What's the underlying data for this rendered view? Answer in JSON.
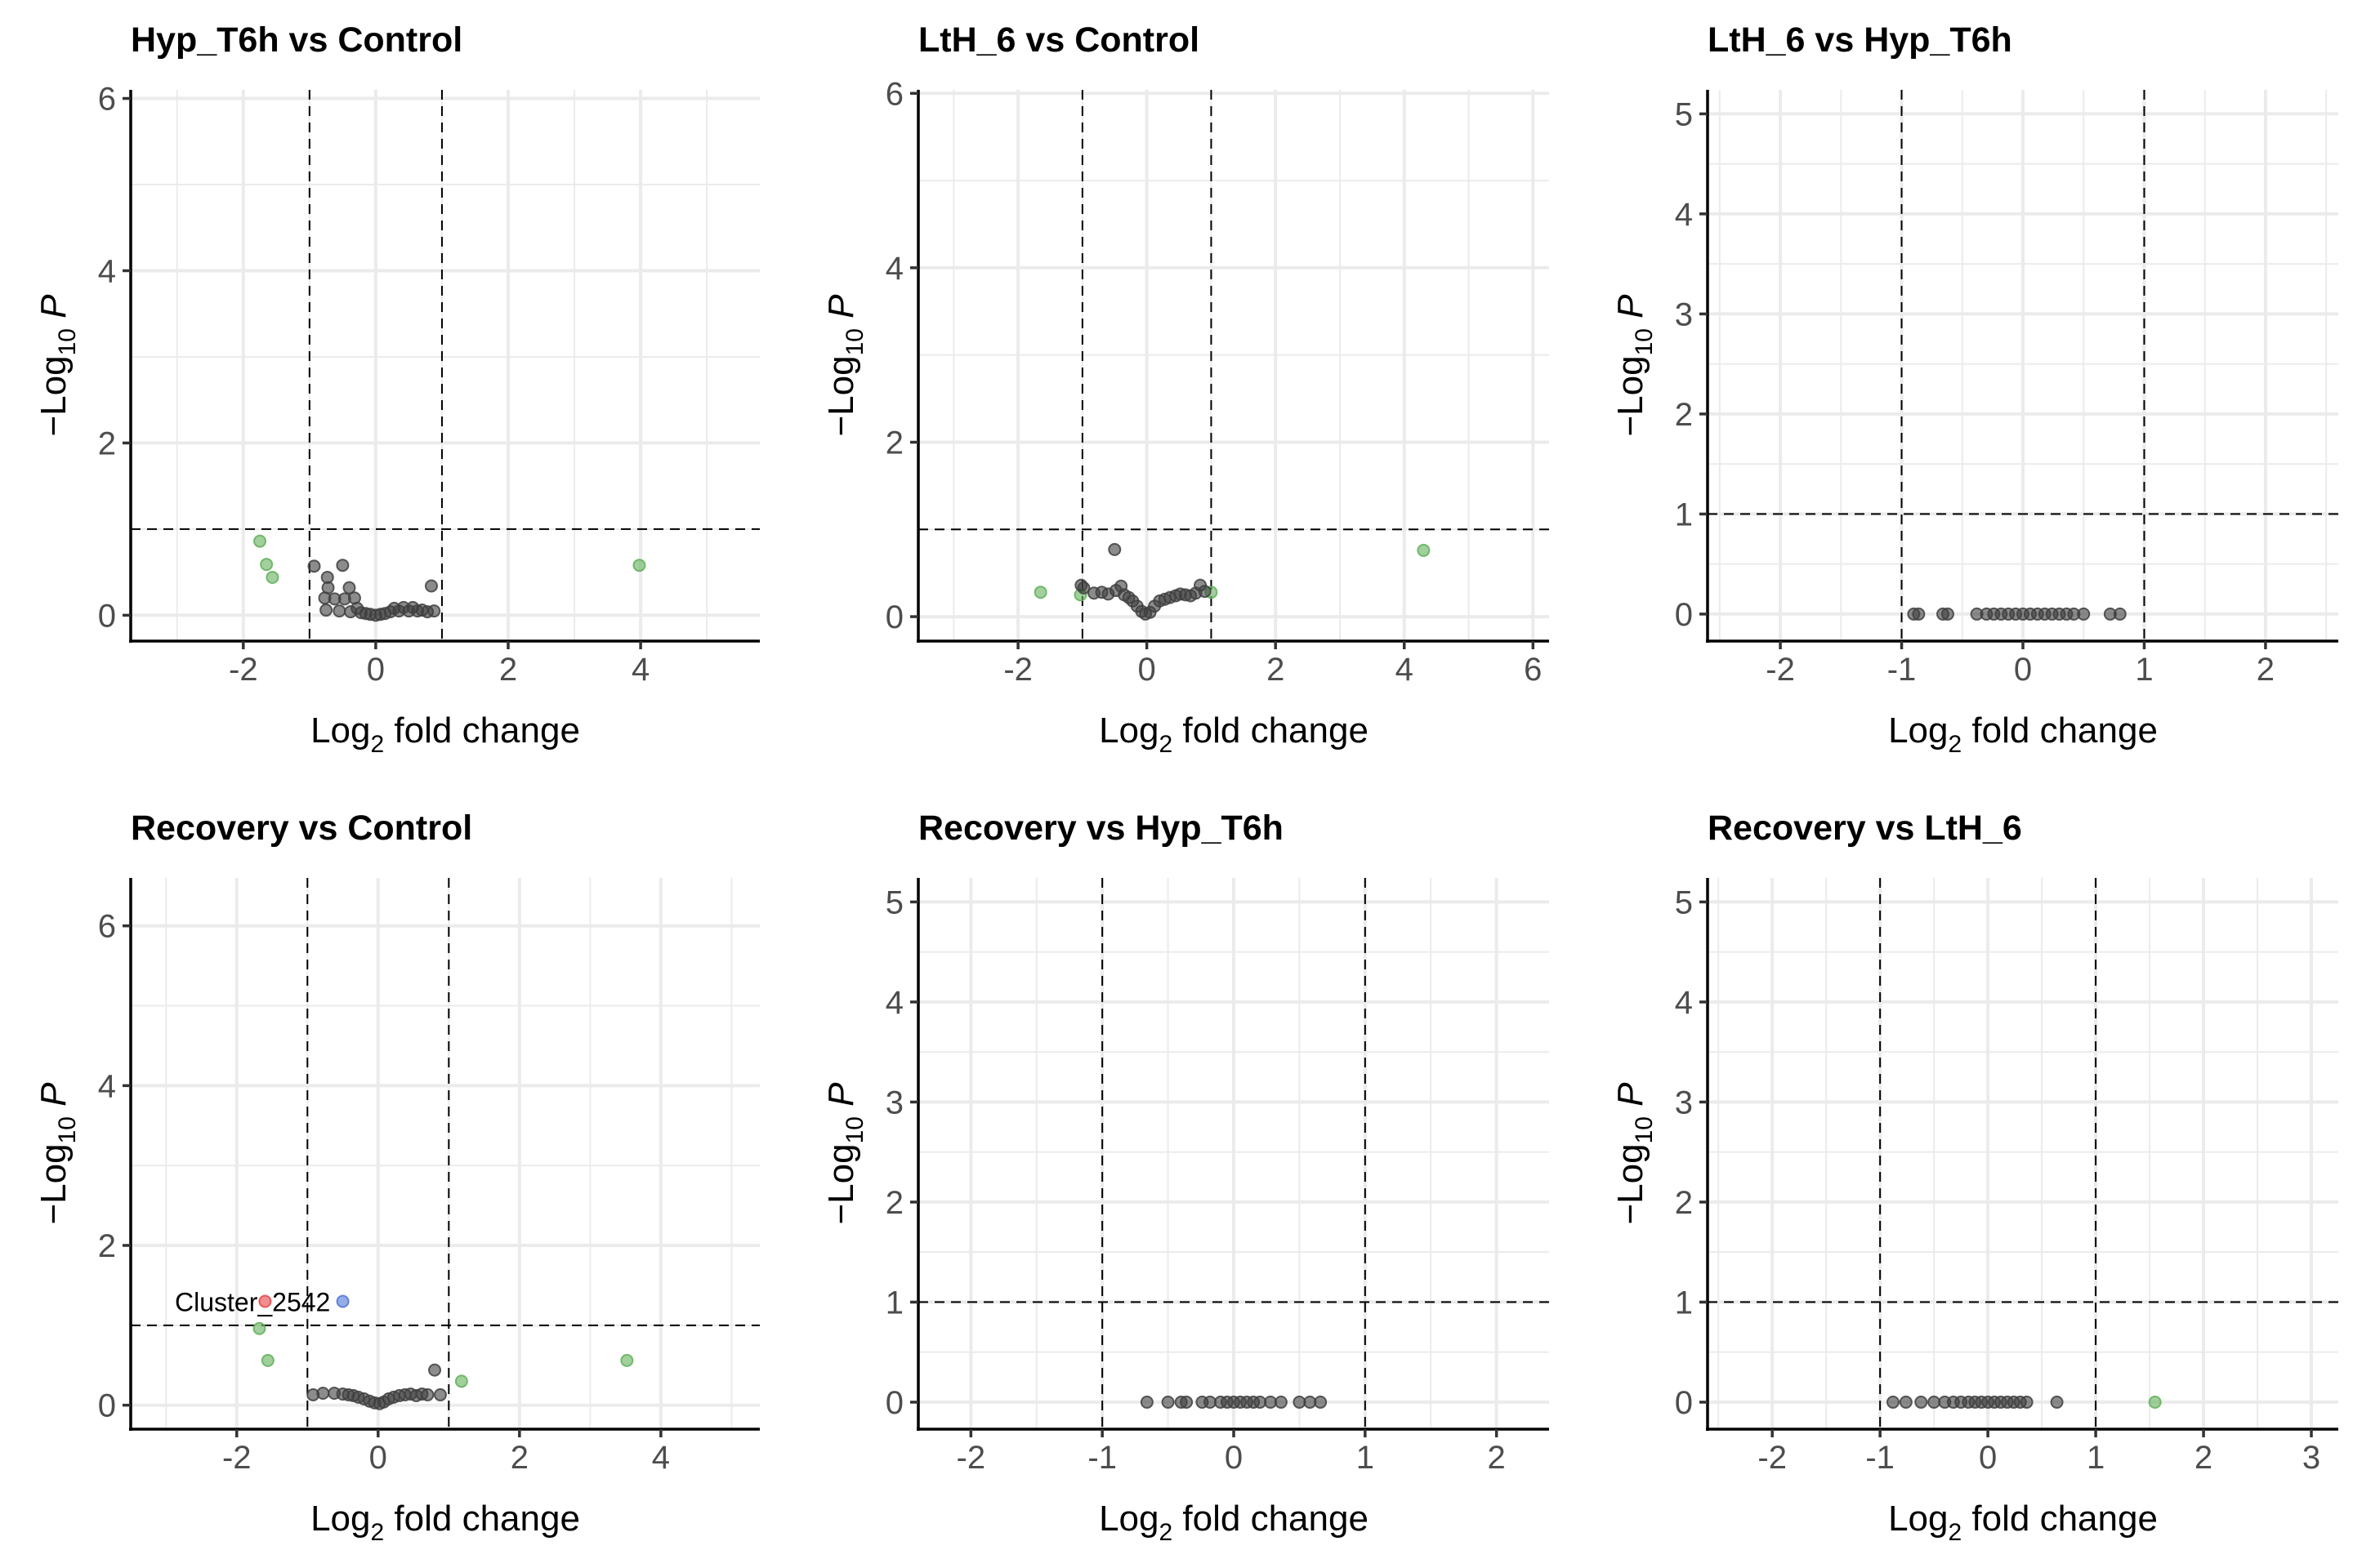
{
  "chart_data": [
    {
      "type": "scatter",
      "title": "Hyp_T6h  vs  Control",
      "xlabel": "Log",
      "xlabel_sub": "2",
      "xlabel_rest": " fold change",
      "ylabel": "−Log",
      "ylabel_sub": "10",
      "ylabel_rest": " P",
      "xlim": [
        -3.7,
        5.8
      ],
      "ylim": [
        -0.3,
        6.1
      ],
      "xticks": [
        -2,
        0,
        2,
        4
      ],
      "yticks": [
        0,
        2,
        4,
        6
      ],
      "xtick_labels": [
        "-2",
        "0",
        "2",
        "4"
      ],
      "ytick_labels": [
        "0",
        "2",
        "4",
        "6"
      ],
      "vlines": [
        -1,
        1
      ],
      "hline": 1,
      "colors": {
        "ns": "#404040",
        "log2fc": "#62b05a",
        "p": "#4f74d6",
        "both": "#e64545"
      },
      "points": [
        {
          "x": -1.75,
          "y": 0.86,
          "g": "log2fc"
        },
        {
          "x": -1.65,
          "y": 0.59,
          "g": "log2fc"
        },
        {
          "x": -1.56,
          "y": 0.44,
          "g": "log2fc"
        },
        {
          "x": 3.98,
          "y": 0.58,
          "g": "log2fc"
        },
        {
          "x": -0.93,
          "y": 0.57,
          "g": "ns"
        },
        {
          "x": -0.73,
          "y": 0.44,
          "g": "ns"
        },
        {
          "x": -0.72,
          "y": 0.32,
          "g": "ns"
        },
        {
          "x": -0.5,
          "y": 0.58,
          "g": "ns"
        },
        {
          "x": -0.4,
          "y": 0.32,
          "g": "ns"
        },
        {
          "x": -0.77,
          "y": 0.2,
          "g": "ns"
        },
        {
          "x": -0.62,
          "y": 0.19,
          "g": "ns"
        },
        {
          "x": -0.47,
          "y": 0.19,
          "g": "ns"
        },
        {
          "x": -0.32,
          "y": 0.2,
          "g": "ns"
        },
        {
          "x": -0.75,
          "y": 0.06,
          "g": "ns"
        },
        {
          "x": -0.55,
          "y": 0.05,
          "g": "ns"
        },
        {
          "x": -0.38,
          "y": 0.04,
          "g": "ns"
        },
        {
          "x": -0.28,
          "y": 0.08,
          "g": "ns"
        },
        {
          "x": -0.22,
          "y": 0.03,
          "g": "ns"
        },
        {
          "x": -0.15,
          "y": 0.02,
          "g": "ns"
        },
        {
          "x": -0.08,
          "y": 0.01,
          "g": "ns"
        },
        {
          "x": 0.0,
          "y": 0.0,
          "g": "ns"
        },
        {
          "x": 0.07,
          "y": 0.01,
          "g": "ns"
        },
        {
          "x": 0.14,
          "y": 0.02,
          "g": "ns"
        },
        {
          "x": 0.22,
          "y": 0.04,
          "g": "ns"
        },
        {
          "x": 0.28,
          "y": 0.08,
          "g": "ns"
        },
        {
          "x": 0.35,
          "y": 0.05,
          "g": "ns"
        },
        {
          "x": 0.42,
          "y": 0.09,
          "g": "ns"
        },
        {
          "x": 0.5,
          "y": 0.05,
          "g": "ns"
        },
        {
          "x": 0.56,
          "y": 0.09,
          "g": "ns"
        },
        {
          "x": 0.63,
          "y": 0.05,
          "g": "ns"
        },
        {
          "x": 0.7,
          "y": 0.06,
          "g": "ns"
        },
        {
          "x": 0.78,
          "y": 0.04,
          "g": "ns"
        },
        {
          "x": 0.84,
          "y": 0.34,
          "g": "ns"
        },
        {
          "x": 0.88,
          "y": 0.05,
          "g": "ns"
        }
      ]
    },
    {
      "type": "scatter",
      "title": "LtH_6  vs  Control",
      "xlabel": "Log",
      "xlabel_sub": "2",
      "xlabel_rest": " fold change",
      "ylabel": "−Log",
      "ylabel_sub": "10",
      "ylabel_rest": " P",
      "xlim": [
        -3.55,
        6.25
      ],
      "ylim": [
        -0.28,
        6.04
      ],
      "xticks": [
        -2,
        0,
        2,
        4,
        6
      ],
      "yticks": [
        0,
        2,
        4,
        6
      ],
      "xtick_labels": [
        "-2",
        "0",
        "2",
        "4",
        "6"
      ],
      "ytick_labels": [
        "0",
        "2",
        "4",
        "6"
      ],
      "vlines": [
        -1,
        1
      ],
      "hline": 1,
      "colors": {
        "ns": "#404040",
        "log2fc": "#62b05a",
        "p": "#4f74d6",
        "both": "#e64545"
      },
      "points": [
        {
          "x": -1.65,
          "y": 0.28,
          "g": "log2fc"
        },
        {
          "x": -1.03,
          "y": 0.25,
          "g": "log2fc"
        },
        {
          "x": 1.0,
          "y": 0.28,
          "g": "log2fc"
        },
        {
          "x": 4.3,
          "y": 0.76,
          "g": "log2fc"
        },
        {
          "x": -1.02,
          "y": 0.36,
          "g": "ns"
        },
        {
          "x": -0.98,
          "y": 0.33,
          "g": "ns"
        },
        {
          "x": -0.82,
          "y": 0.27,
          "g": "ns"
        },
        {
          "x": -0.7,
          "y": 0.28,
          "g": "ns"
        },
        {
          "x": -0.6,
          "y": 0.26,
          "g": "ns"
        },
        {
          "x": -0.5,
          "y": 0.77,
          "g": "ns"
        },
        {
          "x": -0.48,
          "y": 0.3,
          "g": "ns"
        },
        {
          "x": -0.4,
          "y": 0.35,
          "g": "ns"
        },
        {
          "x": -0.35,
          "y": 0.25,
          "g": "ns"
        },
        {
          "x": -0.28,
          "y": 0.22,
          "g": "ns"
        },
        {
          "x": -0.22,
          "y": 0.18,
          "g": "ns"
        },
        {
          "x": -0.15,
          "y": 0.12,
          "g": "ns"
        },
        {
          "x": -0.08,
          "y": 0.06,
          "g": "ns"
        },
        {
          "x": -0.02,
          "y": 0.03,
          "g": "ns"
        },
        {
          "x": 0.05,
          "y": 0.05,
          "g": "ns"
        },
        {
          "x": 0.12,
          "y": 0.12,
          "g": "ns"
        },
        {
          "x": 0.2,
          "y": 0.18,
          "g": "ns"
        },
        {
          "x": 0.28,
          "y": 0.2,
          "g": "ns"
        },
        {
          "x": 0.36,
          "y": 0.22,
          "g": "ns"
        },
        {
          "x": 0.45,
          "y": 0.24,
          "g": "ns"
        },
        {
          "x": 0.52,
          "y": 0.26,
          "g": "ns"
        },
        {
          "x": 0.6,
          "y": 0.25,
          "g": "ns"
        },
        {
          "x": 0.68,
          "y": 0.24,
          "g": "ns"
        },
        {
          "x": 0.76,
          "y": 0.27,
          "g": "ns"
        },
        {
          "x": 0.83,
          "y": 0.36,
          "g": "ns"
        },
        {
          "x": 0.9,
          "y": 0.29,
          "g": "ns"
        }
      ]
    },
    {
      "type": "scatter",
      "title": "LtH_6  vs  Hyp_T6h",
      "xlabel": "Log",
      "xlabel_sub": "2",
      "xlabel_rest": " fold change",
      "ylabel": "−Log",
      "ylabel_sub": "10",
      "ylabel_rest": " P",
      "xlim": [
        -2.6,
        2.6
      ],
      "ylim": [
        -0.27,
        5.24
      ],
      "xticks": [
        -2,
        -1,
        0,
        1,
        2
      ],
      "yticks": [
        0,
        1,
        2,
        3,
        4,
        5
      ],
      "xtick_labels": [
        "-2",
        "-1",
        "0",
        "1",
        "2"
      ],
      "ytick_labels": [
        "0",
        "1",
        "2",
        "3",
        "4",
        "5"
      ],
      "vlines": [
        -1,
        1
      ],
      "hline": 1,
      "colors": {
        "ns": "#404040",
        "log2fc": "#62b05a",
        "p": "#4f74d6",
        "both": "#e64545"
      },
      "points": [
        {
          "x": -0.9,
          "y": 0.0,
          "g": "ns"
        },
        {
          "x": -0.86,
          "y": 0.0,
          "g": "ns"
        },
        {
          "x": -0.66,
          "y": 0.0,
          "g": "ns"
        },
        {
          "x": -0.62,
          "y": 0.0,
          "g": "ns"
        },
        {
          "x": -0.38,
          "y": 0.0,
          "g": "ns"
        },
        {
          "x": -0.3,
          "y": 0.0,
          "g": "ns"
        },
        {
          "x": -0.24,
          "y": 0.0,
          "g": "ns"
        },
        {
          "x": -0.18,
          "y": 0.0,
          "g": "ns"
        },
        {
          "x": -0.12,
          "y": 0.0,
          "g": "ns"
        },
        {
          "x": -0.06,
          "y": 0.0,
          "g": "ns"
        },
        {
          "x": 0.0,
          "y": 0.0,
          "g": "ns"
        },
        {
          "x": 0.06,
          "y": 0.0,
          "g": "ns"
        },
        {
          "x": 0.12,
          "y": 0.0,
          "g": "ns"
        },
        {
          "x": 0.18,
          "y": 0.0,
          "g": "ns"
        },
        {
          "x": 0.24,
          "y": 0.0,
          "g": "ns"
        },
        {
          "x": 0.3,
          "y": 0.0,
          "g": "ns"
        },
        {
          "x": 0.36,
          "y": 0.0,
          "g": "ns"
        },
        {
          "x": 0.42,
          "y": 0.0,
          "g": "ns"
        },
        {
          "x": 0.5,
          "y": 0.0,
          "g": "ns"
        },
        {
          "x": 0.72,
          "y": 0.0,
          "g": "ns"
        },
        {
          "x": 0.8,
          "y": 0.0,
          "g": "ns"
        }
      ]
    },
    {
      "type": "scatter",
      "title": "Recovery  vs  Control",
      "xlabel": "Log",
      "xlabel_sub": "2",
      "xlabel_rest": " fold change",
      "ylabel": "−Log",
      "ylabel_sub": "10",
      "ylabel_rest": " P",
      "xlim": [
        -3.5,
        5.4
      ],
      "ylim": [
        -0.3,
        6.6
      ],
      "xticks": [
        -2,
        0,
        2,
        4
      ],
      "yticks": [
        0,
        2,
        4,
        6
      ],
      "xtick_labels": [
        "-2",
        "0",
        "2",
        "4"
      ],
      "ytick_labels": [
        "0",
        "2",
        "4",
        "6"
      ],
      "vlines": [
        -1,
        1
      ],
      "hline": 1,
      "colors": {
        "ns": "#404040",
        "log2fc": "#62b05a",
        "p": "#4f74d6",
        "both": "#e64545"
      },
      "annotations": [
        {
          "text": "Cluster_2542"
        }
      ],
      "points": [
        {
          "x": -1.6,
          "y": 1.3,
          "g": "both"
        },
        {
          "x": -0.5,
          "y": 1.3,
          "g": "p"
        },
        {
          "x": -1.68,
          "y": 0.96,
          "g": "log2fc"
        },
        {
          "x": -1.56,
          "y": 0.56,
          "g": "log2fc"
        },
        {
          "x": 1.18,
          "y": 0.3,
          "g": "log2fc"
        },
        {
          "x": 3.52,
          "y": 0.56,
          "g": "log2fc"
        },
        {
          "x": -0.92,
          "y": 0.13,
          "g": "ns"
        },
        {
          "x": -0.78,
          "y": 0.15,
          "g": "ns"
        },
        {
          "x": -0.62,
          "y": 0.15,
          "g": "ns"
        },
        {
          "x": -0.5,
          "y": 0.14,
          "g": "ns"
        },
        {
          "x": -0.42,
          "y": 0.13,
          "g": "ns"
        },
        {
          "x": -0.35,
          "y": 0.12,
          "g": "ns"
        },
        {
          "x": -0.28,
          "y": 0.1,
          "g": "ns"
        },
        {
          "x": -0.2,
          "y": 0.08,
          "g": "ns"
        },
        {
          "x": -0.12,
          "y": 0.05,
          "g": "ns"
        },
        {
          "x": -0.05,
          "y": 0.03,
          "g": "ns"
        },
        {
          "x": 0.02,
          "y": 0.02,
          "g": "ns"
        },
        {
          "x": 0.08,
          "y": 0.04,
          "g": "ns"
        },
        {
          "x": 0.15,
          "y": 0.08,
          "g": "ns"
        },
        {
          "x": 0.22,
          "y": 0.1,
          "g": "ns"
        },
        {
          "x": 0.3,
          "y": 0.12,
          "g": "ns"
        },
        {
          "x": 0.38,
          "y": 0.13,
          "g": "ns"
        },
        {
          "x": 0.46,
          "y": 0.14,
          "g": "ns"
        },
        {
          "x": 0.54,
          "y": 0.12,
          "g": "ns"
        },
        {
          "x": 0.62,
          "y": 0.14,
          "g": "ns"
        },
        {
          "x": 0.7,
          "y": 0.13,
          "g": "ns"
        },
        {
          "x": 0.8,
          "y": 0.44,
          "g": "ns"
        },
        {
          "x": 0.88,
          "y": 0.13,
          "g": "ns"
        }
      ]
    },
    {
      "type": "scatter",
      "title": "Recovery  vs  Hyp_T6h",
      "xlabel": "Log",
      "xlabel_sub": "2",
      "xlabel_rest": " fold change",
      "ylabel": "−Log",
      "ylabel_sub": "10",
      "ylabel_rest": " P",
      "xlim": [
        -2.4,
        2.4
      ],
      "ylim": [
        -0.27,
        5.24
      ],
      "xticks": [
        -2,
        -1,
        0,
        1,
        2
      ],
      "yticks": [
        0,
        1,
        2,
        3,
        4,
        5
      ],
      "xtick_labels": [
        "-2",
        "-1",
        "0",
        "1",
        "2"
      ],
      "ytick_labels": [
        "0",
        "1",
        "2",
        "3",
        "4",
        "5"
      ],
      "vlines": [
        -1,
        1
      ],
      "hline": 1,
      "colors": {
        "ns": "#404040",
        "log2fc": "#62b05a",
        "p": "#4f74d6",
        "both": "#e64545"
      },
      "points": [
        {
          "x": -0.66,
          "y": 0.0,
          "g": "ns"
        },
        {
          "x": -0.5,
          "y": 0.0,
          "g": "ns"
        },
        {
          "x": -0.4,
          "y": 0.0,
          "g": "ns"
        },
        {
          "x": -0.36,
          "y": 0.0,
          "g": "ns"
        },
        {
          "x": -0.24,
          "y": 0.0,
          "g": "ns"
        },
        {
          "x": -0.18,
          "y": 0.0,
          "g": "ns"
        },
        {
          "x": -0.1,
          "y": 0.0,
          "g": "ns"
        },
        {
          "x": -0.05,
          "y": 0.0,
          "g": "ns"
        },
        {
          "x": 0.0,
          "y": 0.0,
          "g": "ns"
        },
        {
          "x": 0.05,
          "y": 0.0,
          "g": "ns"
        },
        {
          "x": 0.1,
          "y": 0.0,
          "g": "ns"
        },
        {
          "x": 0.15,
          "y": 0.0,
          "g": "ns"
        },
        {
          "x": 0.2,
          "y": 0.0,
          "g": "ns"
        },
        {
          "x": 0.28,
          "y": 0.0,
          "g": "ns"
        },
        {
          "x": 0.36,
          "y": 0.0,
          "g": "ns"
        },
        {
          "x": 0.5,
          "y": 0.0,
          "g": "ns"
        },
        {
          "x": 0.58,
          "y": 0.0,
          "g": "ns"
        },
        {
          "x": 0.66,
          "y": 0.0,
          "g": "ns"
        }
      ]
    },
    {
      "type": "scatter",
      "title": "Recovery  vs  LtH_6",
      "xlabel": "Log",
      "xlabel_sub": "2",
      "xlabel_rest": " fold change",
      "ylabel": "−Log",
      "ylabel_sub": "10",
      "ylabel_rest": " P",
      "xlim": [
        -2.6,
        3.25
      ],
      "ylim": [
        -0.27,
        5.24
      ],
      "xticks": [
        -2,
        -1,
        0,
        1,
        2,
        3
      ],
      "yticks": [
        0,
        1,
        2,
        3,
        4,
        5
      ],
      "xtick_labels": [
        "-2",
        "-1",
        "0",
        "1",
        "2",
        "3"
      ],
      "ytick_labels": [
        "0",
        "1",
        "2",
        "3",
        "4",
        "5"
      ],
      "vlines": [
        -1,
        1
      ],
      "hline": 1,
      "colors": {
        "ns": "#404040",
        "log2fc": "#62b05a",
        "p": "#4f74d6",
        "both": "#e64545"
      },
      "points": [
        {
          "x": 1.55,
          "y": 0.0,
          "g": "log2fc"
        },
        {
          "x": -0.88,
          "y": 0.0,
          "g": "ns"
        },
        {
          "x": -0.76,
          "y": 0.0,
          "g": "ns"
        },
        {
          "x": -0.62,
          "y": 0.0,
          "g": "ns"
        },
        {
          "x": -0.5,
          "y": 0.0,
          "g": "ns"
        },
        {
          "x": -0.4,
          "y": 0.0,
          "g": "ns"
        },
        {
          "x": -0.32,
          "y": 0.0,
          "g": "ns"
        },
        {
          "x": -0.25,
          "y": 0.0,
          "g": "ns"
        },
        {
          "x": -0.18,
          "y": 0.0,
          "g": "ns"
        },
        {
          "x": -0.12,
          "y": 0.0,
          "g": "ns"
        },
        {
          "x": -0.06,
          "y": 0.0,
          "g": "ns"
        },
        {
          "x": 0.0,
          "y": 0.0,
          "g": "ns"
        },
        {
          "x": 0.06,
          "y": 0.0,
          "g": "ns"
        },
        {
          "x": 0.12,
          "y": 0.0,
          "g": "ns"
        },
        {
          "x": 0.18,
          "y": 0.0,
          "g": "ns"
        },
        {
          "x": 0.24,
          "y": 0.0,
          "g": "ns"
        },
        {
          "x": 0.3,
          "y": 0.0,
          "g": "ns"
        },
        {
          "x": 0.36,
          "y": 0.0,
          "g": "ns"
        },
        {
          "x": 0.64,
          "y": 0.0,
          "g": "ns"
        }
      ]
    }
  ]
}
